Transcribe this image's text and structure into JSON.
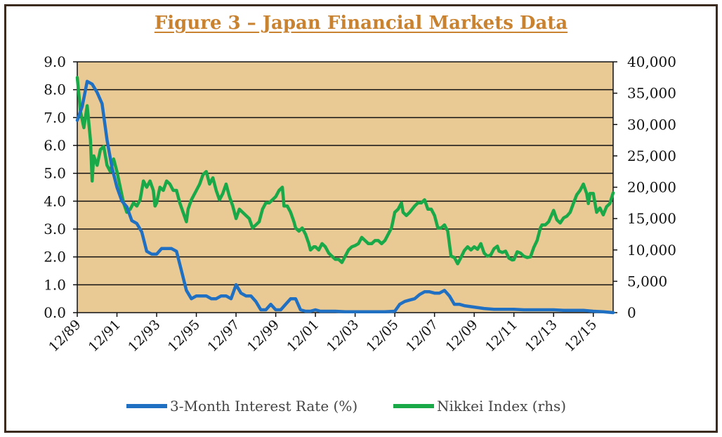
{
  "title": "Figure 3 – Japan Financial Markets Data",
  "chart_data": {
    "type": "line",
    "x_type": "month",
    "x_range": [
      "12/89",
      "12/16"
    ],
    "x_ticks": [
      "12/89",
      "12/91",
      "12/93",
      "12/95",
      "12/97",
      "12/99",
      "12/01",
      "12/03",
      "12/05",
      "12/07",
      "12/09",
      "12/11",
      "12/13",
      "12/15"
    ],
    "y_left": {
      "min": 0,
      "max": 9,
      "step": 1,
      "ticks": [
        "0.0",
        "1.0",
        "2.0",
        "3.0",
        "4.0",
        "5.0",
        "6.0",
        "7.0",
        "8.0",
        "9.0"
      ]
    },
    "y_right": {
      "min": 0,
      "max": 40000,
      "step": 5000,
      "ticks": [
        "0",
        "5,000",
        "10,000",
        "15,000",
        "20,000",
        "25,000",
        "30,000",
        "35,000",
        "40,000"
      ]
    },
    "grid": "horizontal",
    "legend_position": "bottom",
    "plot_bg": "#e9c994",
    "series": [
      {
        "name": "3-Month Interest Rate (%)",
        "axis": "left",
        "color": "#1f6fc2",
        "points": [
          [
            "12/89",
            6.9
          ],
          [
            "03/90",
            7.4
          ],
          [
            "06/90",
            8.3
          ],
          [
            "09/90",
            8.2
          ],
          [
            "12/90",
            7.9
          ],
          [
            "03/91",
            7.5
          ],
          [
            "06/91",
            6.2
          ],
          [
            "09/91",
            5.2
          ],
          [
            "12/91",
            4.5
          ],
          [
            "03/92",
            4.0
          ],
          [
            "06/92",
            3.8
          ],
          [
            "09/92",
            3.3
          ],
          [
            "12/92",
            3.2
          ],
          [
            "03/93",
            2.9
          ],
          [
            "06/93",
            2.2
          ],
          [
            "09/93",
            2.1
          ],
          [
            "12/93",
            2.1
          ],
          [
            "03/94",
            2.3
          ],
          [
            "06/94",
            2.3
          ],
          [
            "09/94",
            2.3
          ],
          [
            "12/94",
            2.2
          ],
          [
            "03/95",
            1.5
          ],
          [
            "06/95",
            0.8
          ],
          [
            "09/95",
            0.5
          ],
          [
            "12/95",
            0.6
          ],
          [
            "03/96",
            0.6
          ],
          [
            "06/96",
            0.6
          ],
          [
            "09/96",
            0.5
          ],
          [
            "12/96",
            0.5
          ],
          [
            "03/97",
            0.6
          ],
          [
            "06/97",
            0.6
          ],
          [
            "09/97",
            0.5
          ],
          [
            "12/97",
            1.0
          ],
          [
            "03/98",
            0.7
          ],
          [
            "06/98",
            0.6
          ],
          [
            "09/98",
            0.6
          ],
          [
            "12/98",
            0.4
          ],
          [
            "03/99",
            0.1
          ],
          [
            "06/99",
            0.1
          ],
          [
            "09/99",
            0.3
          ],
          [
            "12/99",
            0.1
          ],
          [
            "03/00",
            0.1
          ],
          [
            "06/00",
            0.3
          ],
          [
            "09/00",
            0.5
          ],
          [
            "12/00",
            0.5
          ],
          [
            "03/01",
            0.1
          ],
          [
            "06/01",
            0.05
          ],
          [
            "09/01",
            0.05
          ],
          [
            "12/01",
            0.1
          ],
          [
            "03/02",
            0.05
          ],
          [
            "06/02",
            0.05
          ],
          [
            "09/02",
            0.05
          ],
          [
            "12/02",
            0.05
          ],
          [
            "06/03",
            0.03
          ],
          [
            "12/03",
            0.03
          ],
          [
            "06/04",
            0.03
          ],
          [
            "12/04",
            0.03
          ],
          [
            "06/05",
            0.03
          ],
          [
            "12/05",
            0.05
          ],
          [
            "03/06",
            0.3
          ],
          [
            "06/06",
            0.4
          ],
          [
            "09/06",
            0.45
          ],
          [
            "12/06",
            0.5
          ],
          [
            "03/07",
            0.65
          ],
          [
            "06/07",
            0.75
          ],
          [
            "09/07",
            0.75
          ],
          [
            "12/07",
            0.7
          ],
          [
            "03/08",
            0.7
          ],
          [
            "06/08",
            0.8
          ],
          [
            "09/08",
            0.6
          ],
          [
            "12/08",
            0.3
          ],
          [
            "03/09",
            0.3
          ],
          [
            "06/09",
            0.25
          ],
          [
            "12/09",
            0.2
          ],
          [
            "06/10",
            0.15
          ],
          [
            "12/10",
            0.12
          ],
          [
            "06/11",
            0.12
          ],
          [
            "12/11",
            0.12
          ],
          [
            "06/12",
            0.1
          ],
          [
            "12/12",
            0.1
          ],
          [
            "06/13",
            0.1
          ],
          [
            "12/13",
            0.1
          ],
          [
            "06/14",
            0.08
          ],
          [
            "12/14",
            0.08
          ],
          [
            "06/15",
            0.08
          ],
          [
            "12/15",
            0.05
          ],
          [
            "06/16",
            0.03
          ],
          [
            "12/16",
            0.0
          ]
        ]
      },
      {
        "name": "Nikkei Index (rhs)",
        "axis": "right",
        "color": "#19a948",
        "points": [
          [
            "12/89",
            37500
          ],
          [
            "02/90",
            32000
          ],
          [
            "04/90",
            29500
          ],
          [
            "06/90",
            33000
          ],
          [
            "08/90",
            27500
          ],
          [
            "09/90",
            21000
          ],
          [
            "10/90",
            25000
          ],
          [
            "12/90",
            23500
          ],
          [
            "02/91",
            26000
          ],
          [
            "04/91",
            26500
          ],
          [
            "06/91",
            23500
          ],
          [
            "08/91",
            22500
          ],
          [
            "10/91",
            24500
          ],
          [
            "12/91",
            22500
          ],
          [
            "02/92",
            20000
          ],
          [
            "04/92",
            17500
          ],
          [
            "06/92",
            16000
          ],
          [
            "08/92",
            16500
          ],
          [
            "10/92",
            17500
          ],
          [
            "12/92",
            17000
          ],
          [
            "02/93",
            18000
          ],
          [
            "04/93",
            21000
          ],
          [
            "06/93",
            20000
          ],
          [
            "08/93",
            21000
          ],
          [
            "10/93",
            19500
          ],
          [
            "11/93",
            17000
          ],
          [
            "12/93",
            17500
          ],
          [
            "02/94",
            20000
          ],
          [
            "04/94",
            19500
          ],
          [
            "06/94",
            21000
          ],
          [
            "08/94",
            20500
          ],
          [
            "10/94",
            19500
          ],
          [
            "12/94",
            19500
          ],
          [
            "02/95",
            17500
          ],
          [
            "04/95",
            16000
          ],
          [
            "06/95",
            14500
          ],
          [
            "07/95",
            16500
          ],
          [
            "09/95",
            18000
          ],
          [
            "12/95",
            19500
          ],
          [
            "02/96",
            20500
          ],
          [
            "04/96",
            22000
          ],
          [
            "06/96",
            22500
          ],
          [
            "08/96",
            20500
          ],
          [
            "10/96",
            21500
          ],
          [
            "12/96",
            19500
          ],
          [
            "02/97",
            18000
          ],
          [
            "04/97",
            19000
          ],
          [
            "06/97",
            20500
          ],
          [
            "08/97",
            18500
          ],
          [
            "10/97",
            17000
          ],
          [
            "12/97",
            15000
          ],
          [
            "02/98",
            16500
          ],
          [
            "04/98",
            16000
          ],
          [
            "06/98",
            15500
          ],
          [
            "08/98",
            15000
          ],
          [
            "10/98",
            13500
          ],
          [
            "12/98",
            14000
          ],
          [
            "02/99",
            14500
          ],
          [
            "04/99",
            16500
          ],
          [
            "06/99",
            17500
          ],
          [
            "08/99",
            17500
          ],
          [
            "10/99",
            18000
          ],
          [
            "12/99",
            18500
          ],
          [
            "02/00",
            19500
          ],
          [
            "04/00",
            20000
          ],
          [
            "05/00",
            17000
          ],
          [
            "07/00",
            17000
          ],
          [
            "09/00",
            16000
          ],
          [
            "11/00",
            14500
          ],
          [
            "12/00",
            13500
          ],
          [
            "02/01",
            13000
          ],
          [
            "04/01",
            13500
          ],
          [
            "06/01",
            12500
          ],
          [
            "08/01",
            11000
          ],
          [
            "09/01",
            10000
          ],
          [
            "11/01",
            10500
          ],
          [
            "12/01",
            10500
          ],
          [
            "02/02",
            10000
          ],
          [
            "04/02",
            11000
          ],
          [
            "06/02",
            10500
          ],
          [
            "08/02",
            9500
          ],
          [
            "10/02",
            9000
          ],
          [
            "12/02",
            8500
          ],
          [
            "02/03",
            8500
          ],
          [
            "04/03",
            8000
          ],
          [
            "06/03",
            9000
          ],
          [
            "08/03",
            10000
          ],
          [
            "10/03",
            10500
          ],
          [
            "12/03",
            10700
          ],
          [
            "02/04",
            11000
          ],
          [
            "04/04",
            12000
          ],
          [
            "06/04",
            11500
          ],
          [
            "08/04",
            11000
          ],
          [
            "10/04",
            11000
          ],
          [
            "12/04",
            11500
          ],
          [
            "02/05",
            11500
          ],
          [
            "04/05",
            11000
          ],
          [
            "06/05",
            11500
          ],
          [
            "08/05",
            12500
          ],
          [
            "10/05",
            13500
          ],
          [
            "12/05",
            16000
          ],
          [
            "02/06",
            16500
          ],
          [
            "04/06",
            17500
          ],
          [
            "05/06",
            16000
          ],
          [
            "07/06",
            15500
          ],
          [
            "09/06",
            16000
          ],
          [
            "12/06",
            17000
          ],
          [
            "02/07",
            17500
          ],
          [
            "04/07",
            17500
          ],
          [
            "06/07",
            18000
          ],
          [
            "08/07",
            16500
          ],
          [
            "10/07",
            16500
          ],
          [
            "12/07",
            15500
          ],
          [
            "02/08",
            13500
          ],
          [
            "04/08",
            13500
          ],
          [
            "06/08",
            14000
          ],
          [
            "08/08",
            13000
          ],
          [
            "10/08",
            9000
          ],
          [
            "12/08",
            8800
          ],
          [
            "02/09",
            7800
          ],
          [
            "04/09",
            8800
          ],
          [
            "06/09",
            9900
          ],
          [
            "08/09",
            10500
          ],
          [
            "10/09",
            10000
          ],
          [
            "12/09",
            10500
          ],
          [
            "02/10",
            10100
          ],
          [
            "04/10",
            11000
          ],
          [
            "06/10",
            9500
          ],
          [
            "08/10",
            9000
          ],
          [
            "10/10",
            9200
          ],
          [
            "12/10",
            10200
          ],
          [
            "02/11",
            10600
          ],
          [
            "03/11",
            9800
          ],
          [
            "05/11",
            9600
          ],
          [
            "07/11",
            9800
          ],
          [
            "09/11",
            8700
          ],
          [
            "11/11",
            8400
          ],
          [
            "12/11",
            8450
          ],
          [
            "02/12",
            9700
          ],
          [
            "04/12",
            9500
          ],
          [
            "06/12",
            9000
          ],
          [
            "08/12",
            8800
          ],
          [
            "10/12",
            8900
          ],
          [
            "12/12",
            10400
          ],
          [
            "02/13",
            11500
          ],
          [
            "04/13",
            13500
          ],
          [
            "05/13",
            14000
          ],
          [
            "07/13",
            14000
          ],
          [
            "09/13",
            14500
          ],
          [
            "12/13",
            16300
          ],
          [
            "02/14",
            14800
          ],
          [
            "04/14",
            14300
          ],
          [
            "06/14",
            15100
          ],
          [
            "08/14",
            15400
          ],
          [
            "10/14",
            16000
          ],
          [
            "12/14",
            17450
          ],
          [
            "02/15",
            18800
          ],
          [
            "04/15",
            19500
          ],
          [
            "06/15",
            20500
          ],
          [
            "08/15",
            19000
          ],
          [
            "09/15",
            17400
          ],
          [
            "10/15",
            19000
          ],
          [
            "12/15",
            19000
          ],
          [
            "02/16",
            16000
          ],
          [
            "04/16",
            16700
          ],
          [
            "06/16",
            15600
          ],
          [
            "08/16",
            16900
          ],
          [
            "10/16",
            17400
          ],
          [
            "12/16",
            19100
          ]
        ]
      }
    ]
  }
}
